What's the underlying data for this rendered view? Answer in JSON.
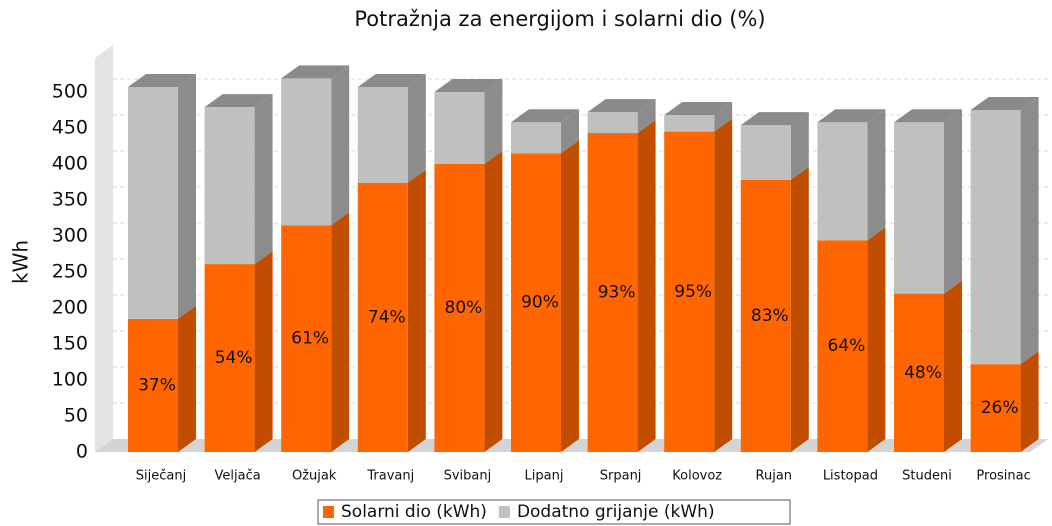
{
  "chart_data": {
    "type": "bar3d_stacked",
    "title": "Potražnja za energijom i solarni dio (%)",
    "ylabel": "kWh",
    "categories": [
      "Siječanj",
      "Veljača",
      "Ožujak",
      "Travanj",
      "Svibanj",
      "Lipanj",
      "Srpanj",
      "Kolovoz",
      "Rujan",
      "Listopad",
      "Studeni",
      "Prosinac"
    ],
    "series": [
      {
        "name": "Solarni dio (kWh)",
        "color": "#ff6600",
        "side": "#c04d00",
        "top": "#ff8a3d",
        "values": [
          185,
          261,
          315,
          374,
          400,
          415,
          443,
          445,
          378,
          294,
          220,
          122
        ]
      },
      {
        "name": "Dodatno grijanje (kWh)",
        "color": "#c0c0c0",
        "side": "#8c8c8c",
        "top": "#8a8a8a",
        "values": [
          322,
          218,
          204,
          133,
          100,
          43,
          29,
          23,
          76,
          164,
          238,
          353
        ]
      }
    ],
    "shares": [
      "37%",
      "54%",
      "61%",
      "74%",
      "80%",
      "90%",
      "93%",
      "95%",
      "83%",
      "64%",
      "48%",
      "26%"
    ],
    "ylim": [
      0,
      550
    ],
    "yticks": [
      0,
      50,
      100,
      150,
      200,
      250,
      300,
      350,
      400,
      450,
      500
    ],
    "grid": true
  }
}
